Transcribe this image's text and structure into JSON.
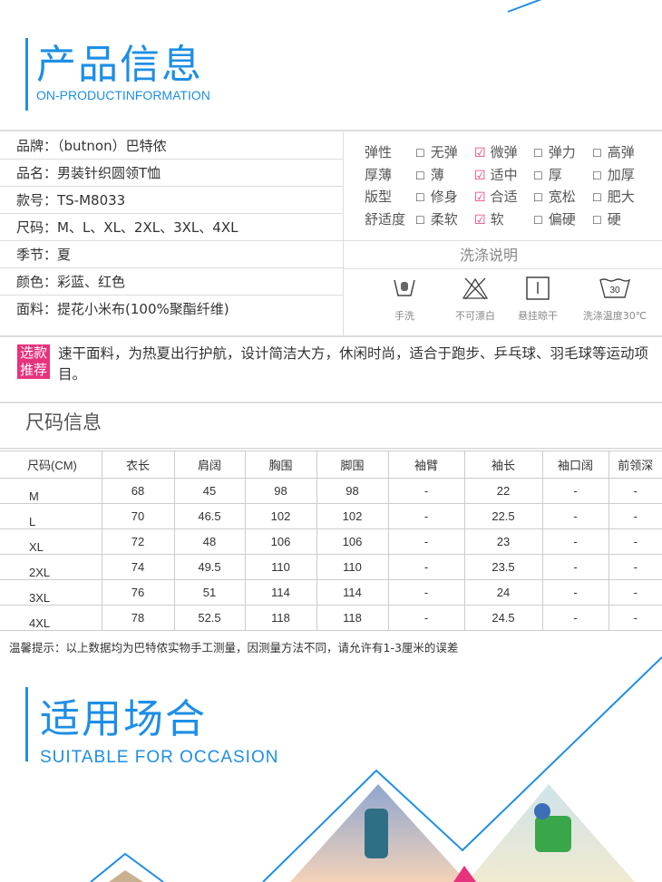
{
  "header1": {
    "title": "产品信息",
    "subtitle": "ON-PRODUCTINFORMATION"
  },
  "info": [
    {
      "text": "品牌：（butnon）巴特侬"
    },
    {
      "text": "品名：男装针织圆领T恤"
    },
    {
      "text": "款号：TS-M8033"
    },
    {
      "text": "尺码：M、L、XL、2XL、3XL、4XL"
    },
    {
      "text": "季节：夏"
    },
    {
      "text": "颜色：彩蓝、红色"
    },
    {
      "text": "面料：提花小米布(100%聚酯纤维)"
    }
  ],
  "attributes": [
    {
      "name": "弹性",
      "options": [
        "无弹",
        "微弹",
        "弹力",
        "高弹"
      ],
      "checked": 1
    },
    {
      "name": "厚薄",
      "options": [
        "薄",
        "适中",
        "厚",
        "加厚"
      ],
      "checked": 1
    },
    {
      "name": "版型",
      "options": [
        "修身",
        "合适",
        "宽松",
        "肥大"
      ],
      "checked": 1
    },
    {
      "name": "舒适度",
      "options": [
        "柔软",
        "软",
        "偏硬",
        "硬"
      ],
      "checked": 1
    }
  ],
  "wash": {
    "title": "洗涤说明",
    "items": [
      {
        "icon": "hand-wash-icon",
        "label": "手洗"
      },
      {
        "icon": "no-bleach-icon",
        "label": "不可漂白"
      },
      {
        "icon": "hang-dry-icon",
        "label": "悬挂晾干"
      },
      {
        "icon": "wash-30-icon",
        "label": "洗涤温度30℃",
        "temp": "30"
      }
    ]
  },
  "recommend": {
    "badge1": "选款",
    "badge2": "推荐",
    "text": "速干面料，为热夏出行护航，设计简洁大方，休闲时尚，适合于跑步、乒乓球、羽毛球等运动项目。"
  },
  "size": {
    "title": "尺码信息",
    "headers": [
      "尺码(CM)",
      "衣长",
      "肩阔",
      "胸围",
      "脚围",
      "袖臂",
      "袖长",
      "袖口阔",
      "前领深"
    ],
    "rows": [
      [
        "M",
        "68",
        "45",
        "98",
        "98",
        "-",
        "22",
        "-",
        "-"
      ],
      [
        "L",
        "70",
        "46.5",
        "102",
        "102",
        "-",
        "22.5",
        "-",
        "-"
      ],
      [
        "XL",
        "72",
        "48",
        "106",
        "106",
        "-",
        "23",
        "-",
        "-"
      ],
      [
        "2XL",
        "74",
        "49.5",
        "110",
        "110",
        "-",
        "23.5",
        "-",
        "-"
      ],
      [
        "3XL",
        "76",
        "51",
        "114",
        "114",
        "-",
        "24",
        "-",
        "-"
      ],
      [
        "4XL",
        "78",
        "52.5",
        "118",
        "118",
        "-",
        "24.5",
        "-",
        "-"
      ]
    ],
    "tip": "温馨提示：以上数据均为巴特侬实物手工测量，因测量方法不同，请允许有1-3厘米的误差"
  },
  "header2": {
    "title": "适用场合",
    "subtitle": "SUITABLE FOR OCCASION"
  },
  "colors": {
    "accent": "#1e8ee6",
    "pink": "#e8327c"
  }
}
